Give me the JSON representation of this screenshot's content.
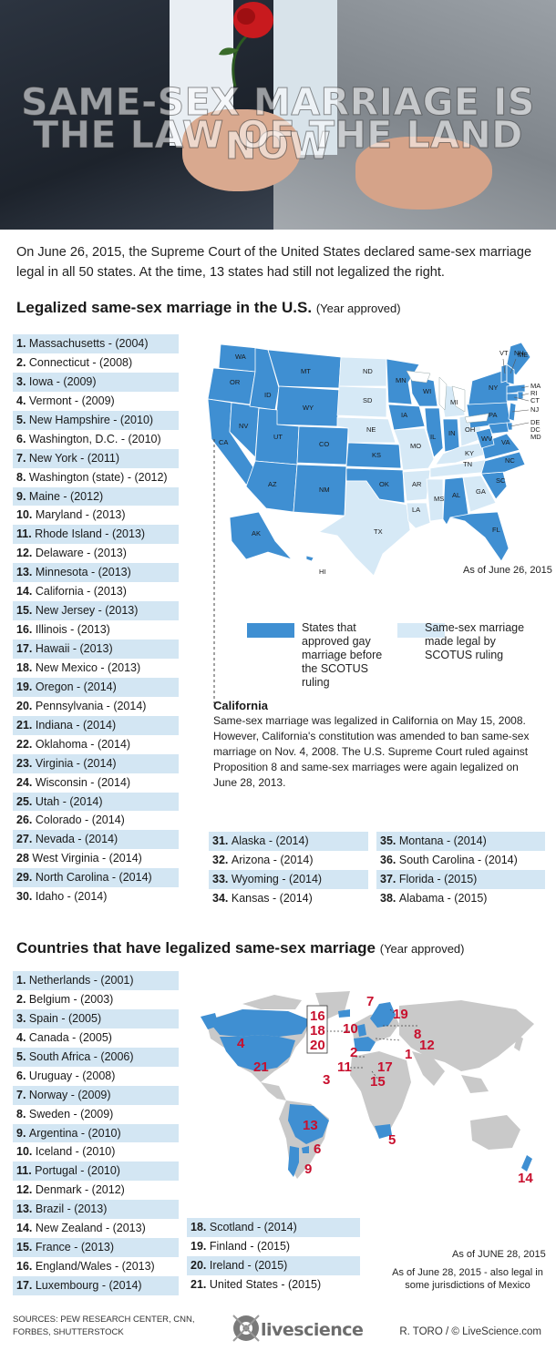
{
  "hero": {
    "title_line1": "SAME-SEX MARRIAGE IS NOW",
    "title_line2": "THE LAW OF THE LAND"
  },
  "intro": "On June 26, 2015, the Supreme Court of the United States declared same-sex marriage legal in all 50 states. At the time, 13 states had still not legalized the right.",
  "us_section": {
    "title": "Legalized same-sex marriage in the U.S.",
    "subtitle": "(Year approved)",
    "list_main": [
      {
        "num": "1.",
        "text": "Massachusetts - (2004)"
      },
      {
        "num": "2.",
        "text": "Connecticut - (2008)"
      },
      {
        "num": "3.",
        "text": "Iowa - (2009)"
      },
      {
        "num": "4.",
        "text": "Vermont - (2009)"
      },
      {
        "num": "5.",
        "text": "New Hampshire - (2010)"
      },
      {
        "num": "6.",
        "text": "Washington, D.C. - (2010)"
      },
      {
        "num": "7.",
        "text": "New York - (2011)"
      },
      {
        "num": "8.",
        "text": "Washington (state) - (2012)"
      },
      {
        "num": "9.",
        "text": "Maine - (2012)"
      },
      {
        "num": "10.",
        "text": "Maryland - (2013)"
      },
      {
        "num": "11.",
        "text": "Rhode Island - (2013)"
      },
      {
        "num": "12.",
        "text": "Delaware - (2013)"
      },
      {
        "num": "13.",
        "text": "Minnesota - (2013)"
      },
      {
        "num": "14.",
        "text": "California - (2013)"
      },
      {
        "num": "15.",
        "text": "New Jersey - (2013)"
      },
      {
        "num": "16.",
        "text": "Illinois - (2013)"
      },
      {
        "num": "17.",
        "text": "Hawaii - (2013)"
      },
      {
        "num": "18.",
        "text": "New Mexico - (2013)"
      },
      {
        "num": "19.",
        "text": "Oregon - (2014)"
      },
      {
        "num": "20.",
        "text": "Pennsylvania - (2014)"
      },
      {
        "num": "21.",
        "text": "Indiana - (2014)"
      },
      {
        "num": "22.",
        "text": "Oklahoma - (2014)"
      },
      {
        "num": "23.",
        "text": "Virginia - (2014)"
      },
      {
        "num": "24.",
        "text": "Wisconsin - (2014)"
      },
      {
        "num": "25.",
        "text": "Utah - (2014)"
      },
      {
        "num": "26.",
        "text": "Colorado - (2014)"
      },
      {
        "num": "27.",
        "text": "Nevada - (2014)"
      },
      {
        "num": "28",
        "text": "West Virginia - (2014)"
      },
      {
        "num": "29.",
        "text": "North Carolina - (2014)"
      },
      {
        "num": "30.",
        "text": "Idaho - (2014)"
      }
    ],
    "list_col2": [
      {
        "num": "31.",
        "text": "Alaska - (2014)"
      },
      {
        "num": "32.",
        "text": "Arizona - (2014)"
      },
      {
        "num": "33.",
        "text": "Wyoming - (2014)"
      },
      {
        "num": "34.",
        "text": "Kansas - (2014)"
      }
    ],
    "list_col3": [
      {
        "num": "35.",
        "text": "Montana - (2014)"
      },
      {
        "num": "36.",
        "text": "South Carolina - (2014)"
      },
      {
        "num": "37.",
        "text": "Florida - (2015)"
      },
      {
        "num": "38.",
        "text": "Alabama - (2015)"
      }
    ],
    "map_date": "As of June 26, 2015",
    "legend_before": "States that approved gay marriage before the SCOTUS ruling",
    "legend_after": "Same-sex marriage made legal by SCOTUS ruling",
    "california_title": "California",
    "california_text": "Same-sex marriage was legalized in California on May 15, 2008. However, California's constitution was amended to ban same-sex marriage on Nov. 4, 2008. The U.S. Supreme Court ruled against Proposition 8 and same-sex marriages were again legalized on June 28, 2013.",
    "state_labels": [
      "WA",
      "OR",
      "CA",
      "NV",
      "ID",
      "MT",
      "WY",
      "UT",
      "AZ",
      "CO",
      "NM",
      "ND",
      "SD",
      "NE",
      "KS",
      "OK",
      "TX",
      "MN",
      "IA",
      "MO",
      "AR",
      "LA",
      "WI",
      "IL",
      "MI",
      "IN",
      "OH",
      "KY",
      "TN",
      "MS",
      "AL",
      "GA",
      "FL",
      "SC",
      "NC",
      "VA",
      "WV",
      "PA",
      "NY",
      "ME",
      "VT",
      "NH",
      "MA",
      "RI",
      "CT",
      "NJ",
      "DE",
      "DC",
      "MD",
      "AK",
      "HI"
    ]
  },
  "world_section": {
    "title": "Countries that have legalized same-sex marriage",
    "subtitle": "(Year approved)",
    "list_col1": [
      {
        "num": "1.",
        "text": "Netherlands - (2001)"
      },
      {
        "num": "2.",
        "text": "Belgium - (2003)"
      },
      {
        "num": "3.",
        "text": "Spain - (2005)"
      },
      {
        "num": "4.",
        "text": "Canada - (2005)"
      },
      {
        "num": "5.",
        "text": "South Africa - (2006)"
      },
      {
        "num": "6.",
        "text": "Uruguay - (2008)"
      },
      {
        "num": "7.",
        "text": "Norway - (2009)"
      },
      {
        "num": "8.",
        "text": "Sweden - (2009)"
      },
      {
        "num": "9.",
        "text": "Argentina - (2010)"
      },
      {
        "num": "10.",
        "text": "Iceland - (2010)"
      },
      {
        "num": "11.",
        "text": "Portugal - (2010)"
      },
      {
        "num": "12.",
        "text": "Denmark - (2012)"
      },
      {
        "num": "13.",
        "text": "Brazil - (2013)"
      },
      {
        "num": "14.",
        "text": "New Zealand - (2013)"
      },
      {
        "num": "15.",
        "text": "France - (2013)"
      },
      {
        "num": "16.",
        "text": "England/Wales - (2013)"
      },
      {
        "num": "17.",
        "text": "Luxembourg - (2014)"
      }
    ],
    "list_col2": [
      {
        "num": "18.",
        "text": "Scotland - (2014)"
      },
      {
        "num": "19.",
        "text": "Finland - (2015)"
      },
      {
        "num": "20.",
        "text": "Ireland - (2015)"
      },
      {
        "num": "21.",
        "text": "United States - (2015)"
      }
    ],
    "map_date": "As of JUNE 28, 2015",
    "mexico_note": "As of June 28, 2015 - also legal in some jurisdictions of Mexico",
    "map_numbers": [
      "16",
      "18",
      "20",
      "7",
      "19",
      "10",
      "8",
      "12",
      "2",
      "1",
      "11",
      "17",
      "3",
      "15",
      "4",
      "21",
      "13",
      "6",
      "9",
      "5",
      "14"
    ]
  },
  "footer": {
    "sources": "SOURCES: PEW RESEARCH CENTER, CNN, FORBES, SHUTTERSTOCK",
    "logo_text": "livescience",
    "credit": "R. TORO / © LiveScience.com"
  },
  "colors": {
    "legal_before": "#3f8fd2",
    "legal_after": "#d6e9f6",
    "list_stripe": "#d3e6f3",
    "country_number": "#c8102e",
    "land_gray": "#c9c9c9"
  }
}
